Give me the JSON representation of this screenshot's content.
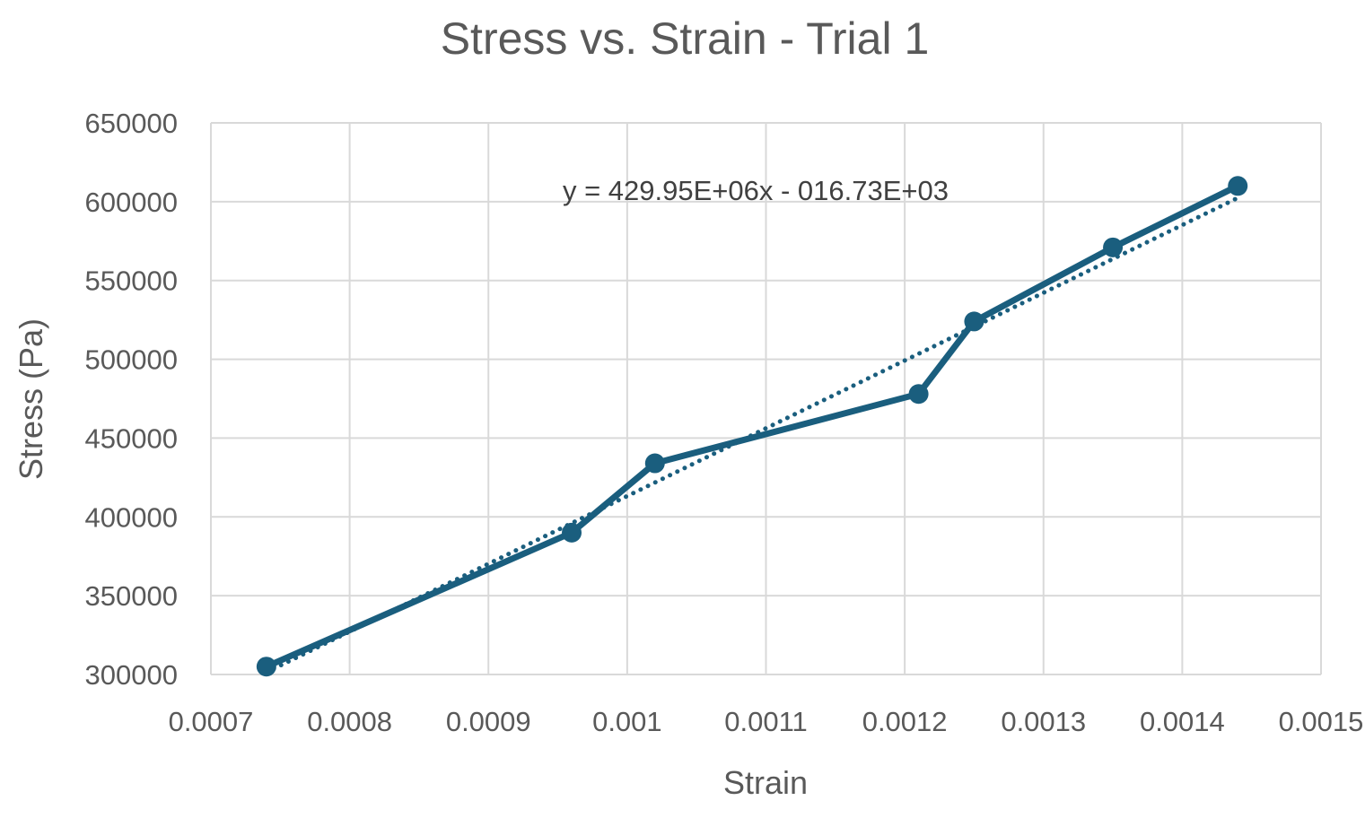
{
  "chart_data": {
    "type": "line",
    "title": "Stress vs. Strain - Trial 1",
    "xlabel": "Strain",
    "ylabel": "Stress (Pa)",
    "xlim": [
      0.0007,
      0.0015
    ],
    "ylim": [
      300000,
      650000
    ],
    "x_ticks": [
      "0.0007",
      "0.0008",
      "0.0009",
      "0.001",
      "0.0011",
      "0.0012",
      "0.0013",
      "0.0014",
      "0.0015"
    ],
    "y_ticks": [
      "650000",
      "600000",
      "550000",
      "500000",
      "450000",
      "400000",
      "350000",
      "300000"
    ],
    "grid": true,
    "legend": "none",
    "series": [
      {
        "x": [
          0.00074,
          0.00096,
          0.00102,
          0.00121,
          0.00125,
          0.00135,
          0.00144
        ],
        "y": [
          305000,
          390000,
          434000,
          478000,
          524000,
          571000,
          610000
        ],
        "color": "#1a5e7e",
        "marker": "circle",
        "line": "solid"
      }
    ],
    "trendline": {
      "type": "linear",
      "slope": 429950000,
      "intercept": -16730,
      "line": "dotted",
      "color": "#1a5e7e"
    },
    "annotations": [
      {
        "text": "y = 429.95E+06x - 016.73E+03"
      }
    ]
  }
}
